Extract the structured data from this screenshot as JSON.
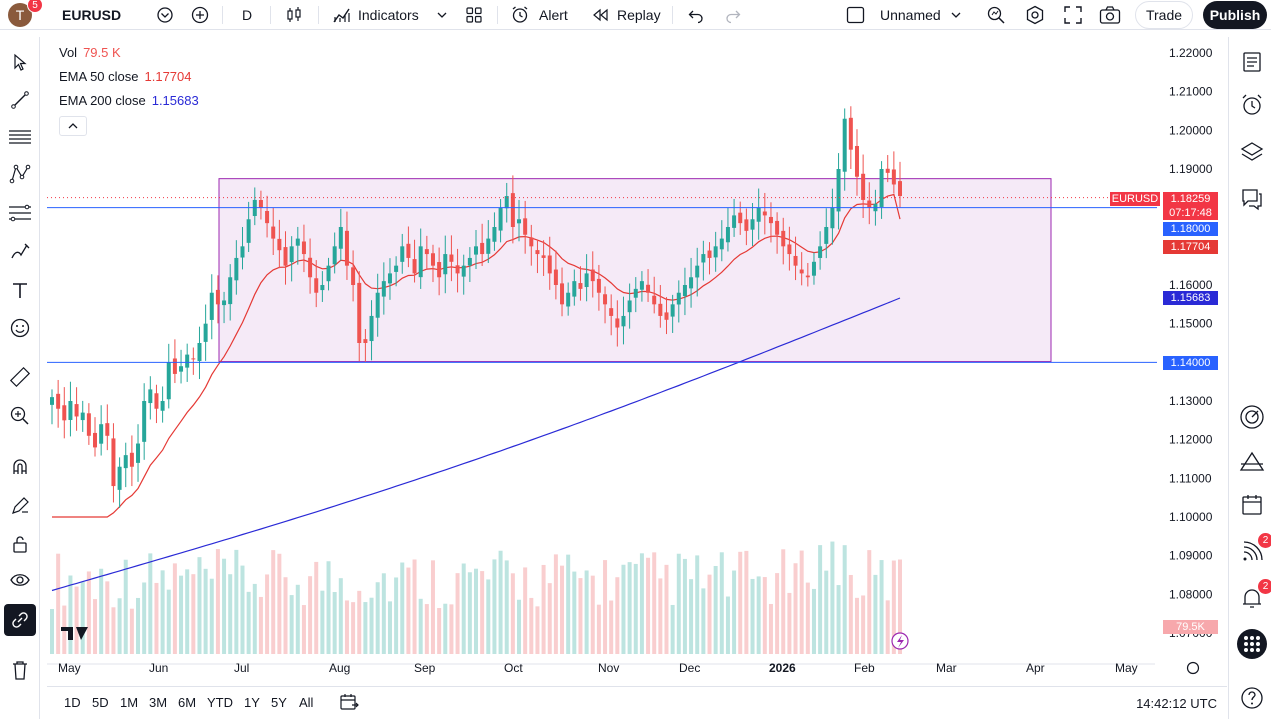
{
  "header": {
    "avatar_initial": "T",
    "avatar_badge": "5",
    "symbol": "EURUSD",
    "interval": "D",
    "indicators_label": "Indicators",
    "alert_label": "Alert",
    "replay_label": "Replay",
    "layout_name": "Unnamed",
    "trade_label": "Trade",
    "publish_label": "Publish"
  },
  "legend": {
    "vol_label": "Vol",
    "vol_value": "79.5 K",
    "ema50_label": "EMA 50 close",
    "ema50_value": "1.17704",
    "ema200_label": "EMA 200 close",
    "ema200_value": "1.15683"
  },
  "price_axis": {
    "ticks": [
      "1.22000",
      "1.21000",
      "1.20000",
      "1.19000",
      "1.16000",
      "1.15000",
      "1.13000",
      "1.12000",
      "1.11000",
      "1.10000",
      "1.09000",
      "1.08000",
      "1.07000"
    ]
  },
  "price_labels": {
    "symbol_tag": "EURUSD",
    "last_price": "1.18259",
    "countdown": "07:17:48",
    "hline_upper": "1.18000",
    "ema50": "1.17704",
    "ema200": "1.15683",
    "hline_lower": "1.14000",
    "volume": "79.5K"
  },
  "time_axis": {
    "labels": [
      "May",
      "Jun",
      "Jul",
      "Aug",
      "Sep",
      "Oct",
      "Nov",
      "Dec",
      "2026",
      "Feb",
      "Mar",
      "Apr",
      "May"
    ]
  },
  "bottom": {
    "ranges": [
      "1D",
      "5D",
      "1M",
      "3M",
      "6M",
      "YTD",
      "1Y",
      "5Y",
      "All"
    ],
    "clock": "14:42:12 UTC"
  },
  "right_badges": {
    "signals": "2",
    "notifications": "2"
  },
  "colors": {
    "up": "#26a69a",
    "down": "#ef5350",
    "ema50": "#e53935",
    "ema200": "#2a2ad6",
    "hline": "#2962ff",
    "rectangle_border": "#9c27b0",
    "rectangle_fill": "#f3e5f5"
  },
  "chart_data": {
    "type": "candlestick",
    "symbol": "EURUSD",
    "interval": "D",
    "ylim": [
      1.0665,
      1.2255
    ],
    "x_labels": [
      "May",
      "Jun",
      "Jul",
      "Aug",
      "Sep",
      "Oct",
      "Nov",
      "Dec",
      "2026",
      "Feb",
      "Mar",
      "Apr",
      "May"
    ],
    "ohlc_close_approx": [
      1.131,
      1.128,
      1.125,
      1.13,
      1.126,
      1.127,
      1.121,
      1.118,
      1.124,
      1.121,
      1.108,
      1.113,
      1.116,
      1.113,
      1.119,
      1.13,
      1.133,
      1.128,
      1.13,
      1.14,
      1.137,
      1.139,
      1.142,
      1.141,
      1.145,
      1.15,
      1.158,
      1.155,
      1.156,
      1.162,
      1.167,
      1.17,
      1.177,
      1.182,
      1.18,
      1.176,
      1.172,
      1.169,
      1.165,
      1.17,
      1.172,
      1.168,
      1.162,
      1.158,
      1.16,
      1.165,
      1.17,
      1.175,
      1.165,
      1.16,
      1.145,
      1.145,
      1.152,
      1.158,
      1.161,
      1.163,
      1.165,
      1.17,
      1.167,
      1.163,
      1.17,
      1.168,
      1.165,
      1.162,
      1.168,
      1.166,
      1.163,
      1.165,
      1.167,
      1.17,
      1.168,
      1.172,
      1.175,
      1.18,
      1.183,
      1.175,
      1.177,
      1.173,
      1.17,
      1.168,
      1.167,
      1.163,
      1.16,
      1.155,
      1.158,
      1.161,
      1.159,
      1.163,
      1.161,
      1.158,
      1.155,
      1.152,
      1.149,
      1.152,
      1.156,
      1.159,
      1.161,
      1.158,
      1.155,
      1.152,
      1.151,
      1.155,
      1.158,
      1.16,
      1.162,
      1.165,
      1.168,
      1.167,
      1.17,
      1.172,
      1.175,
      1.178,
      1.176,
      1.174,
      1.177,
      1.18,
      1.178,
      1.176,
      1.173,
      1.17,
      1.168,
      1.165,
      1.163,
      1.162,
      1.166,
      1.17,
      1.175,
      1.18,
      1.19,
      1.203,
      1.195,
      1.188,
      1.182,
      1.18,
      1.181,
      1.19,
      1.189,
      1.186,
      1.183
    ],
    "horizontal_lines": [
      1.18,
      1.14
    ],
    "rectangle": {
      "price_top": 1.1875,
      "price_bottom": 1.1402,
      "from": "Jul",
      "to": "Mar"
    },
    "ema50_last": 1.17704,
    "ema200_last": 1.15683,
    "last_price": 1.18259,
    "volume_last": "79.5K"
  }
}
